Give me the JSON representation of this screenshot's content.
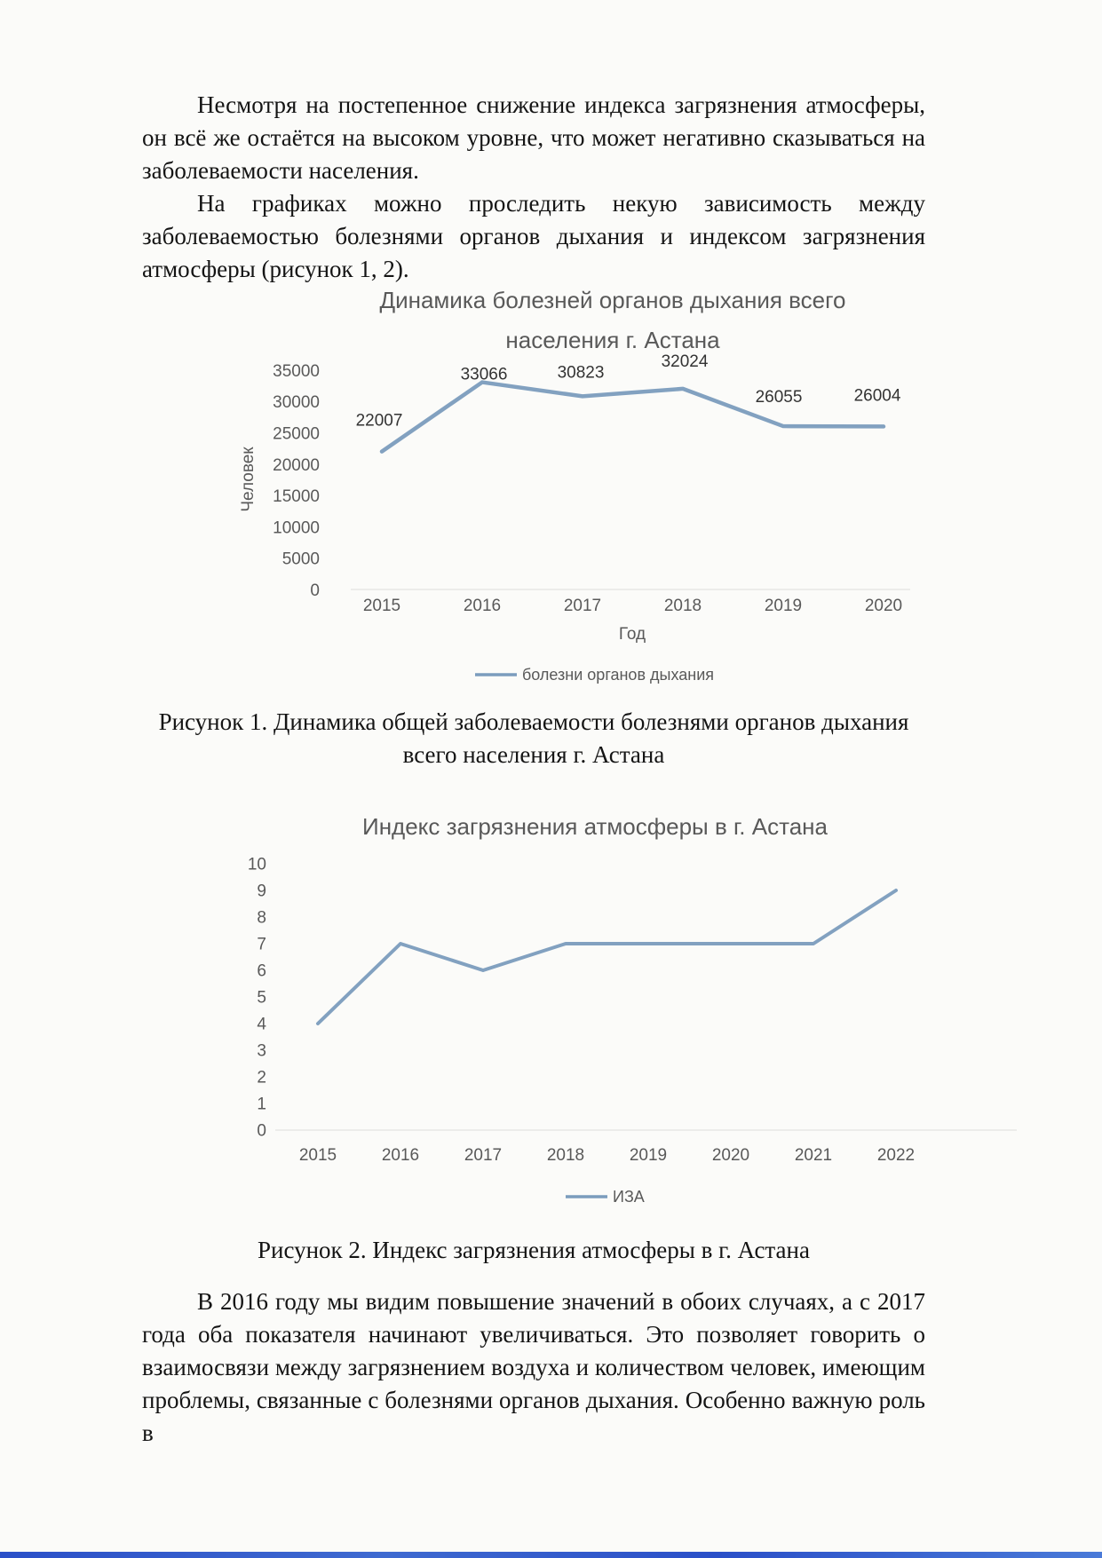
{
  "document": {
    "paragraph1": "Несмотря на постепенное снижение индекса загрязнения атмосферы, он всё же остаётся на высоком уровне, что может негативно сказываться на заболеваемости населения.",
    "paragraph2": "На графиках можно проследить некую зависимость между заболеваемостью болезнями органов дыхания и индексом загрязнения атмосферы (рисунок 1, 2).",
    "figure1_caption": "Рисунок 1. Динамика общей заболеваемости болезнями органов дыхания всего населения г. Астана",
    "figure2_caption": "Рисунок 2.  Индекс загрязнения атмосферы в г. Астана",
    "paragraph3": "В 2016 году мы видим повышение значений в обоих случаях, а с 2017 года оба показателя начинают увеличиваться. Это позволяет говорить о взаимосвязи между загрязнением воздуха и количеством человек, имеющим проблемы, связанные с болезнями органов дыхания. Особенно важную роль в"
  },
  "colors": {
    "line": "#7b9cbd",
    "chart_text": "#595959",
    "data_label": "#333333",
    "axis_line": "#dcdcdc",
    "body_text": "#141414"
  },
  "chart_data": [
    {
      "type": "line",
      "title": "Динамика болезней органов дыхания всего населения г. Астана",
      "title_lines": [
        "Динамика болезней органов дыхания всего",
        "населения г. Астана"
      ],
      "categories": [
        "2015",
        "2016",
        "2017",
        "2018",
        "2019",
        "2020"
      ],
      "series": [
        {
          "name": "болезни органов дыхания",
          "values": [
            22007,
            33066,
            30823,
            32024,
            26055,
            26004
          ]
        }
      ],
      "xlabel": "Год",
      "ylabel": "Человек",
      "ylim": [
        0,
        35000
      ],
      "ytick_step": 5000,
      "grid": false,
      "legend_position": "bottom",
      "data_labels": true
    },
    {
      "type": "line",
      "title": "Индекс загрязнения атмосферы в г. Астана",
      "title_lines": [
        "Индекс загрязнения атмосферы в г. Астана"
      ],
      "categories": [
        "2015",
        "2016",
        "2017",
        "2018",
        "2019",
        "2020",
        "2021",
        "2022"
      ],
      "series": [
        {
          "name": "ИЗА",
          "values": [
            4,
            7,
            6,
            7,
            7,
            7,
            7,
            9
          ]
        }
      ],
      "xlabel": "",
      "ylabel": "",
      "ylim": [
        0,
        10
      ],
      "ytick_step": 1,
      "grid": false,
      "legend_position": "bottom",
      "data_labels": false
    }
  ]
}
